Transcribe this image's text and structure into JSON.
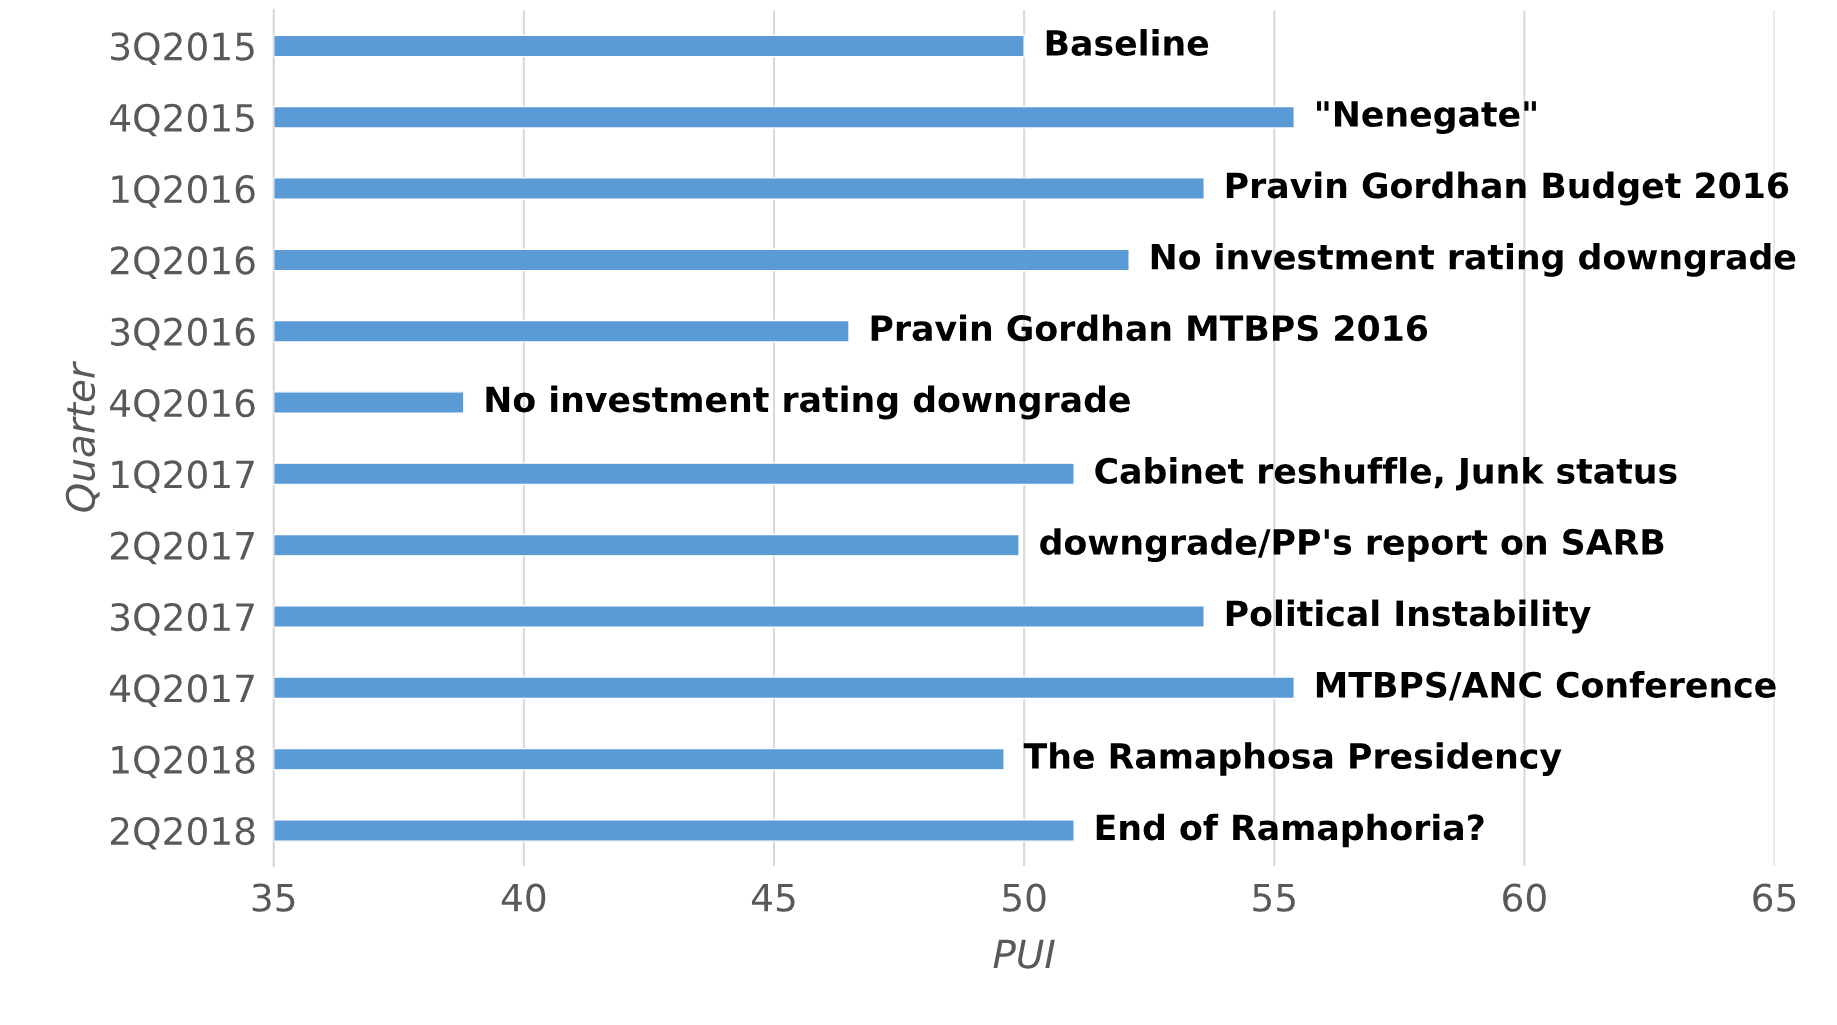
{
  "chart_data": {
    "type": "bar",
    "orientation": "horizontal",
    "xlabel": "PUI",
    "ylabel": "Quarter",
    "categories": [
      "3Q2015",
      "4Q2015",
      "1Q2016",
      "2Q2016",
      "3Q2016",
      "4Q2016",
      "1Q2017",
      "2Q2017",
      "3Q2017",
      "4Q2017",
      "1Q2018",
      "2Q2018"
    ],
    "values": [
      50.0,
      55.4,
      53.6,
      52.1,
      46.5,
      38.8,
      51.0,
      49.9,
      53.6,
      55.4,
      49.6,
      51.0
    ],
    "color": "#5b9bd5",
    "xlim": [
      35,
      65
    ],
    "xticks": [
      35,
      40,
      45,
      50,
      55,
      60,
      65
    ],
    "grid": "x",
    "legend": false,
    "annotations": [
      {
        "text": "Baseline",
        "x": 50.0,
        "y": "3Q2015"
      },
      {
        "text": "\"Nenegate\"",
        "x": 55.4,
        "y": "4Q2015"
      },
      {
        "text": "Pravin Gordhan Budget 2016",
        "x": 53.6,
        "y": "1Q2016"
      },
      {
        "text": "No investment rating downgrade",
        "x": 52.1,
        "y": "2Q2016"
      },
      {
        "text": "Pravin Gordhan MTBPS 2016",
        "x": 46.5,
        "y": "3Q2016"
      },
      {
        "text": "No investment rating downgrade",
        "x": 38.8,
        "y": "4Q2016"
      },
      {
        "text": "Cabinet reshuffle, Junk status",
        "x": 51.0,
        "y": "1Q2017"
      },
      {
        "text": "downgrade/PP's report on SARB",
        "x": 49.9,
        "y": "2Q2017"
      },
      {
        "text": "Political Instability",
        "x": 53.6,
        "y": "3Q2017"
      },
      {
        "text": "MTBPS/ANC Conference",
        "x": 55.4,
        "y": "4Q2017"
      },
      {
        "text": "The Ramaphosa Presidency",
        "x": 49.6,
        "y": "1Q2018"
      },
      {
        "text": "End of Ramaphoria?",
        "x": 51.0,
        "y": "2Q2018"
      }
    ]
  }
}
